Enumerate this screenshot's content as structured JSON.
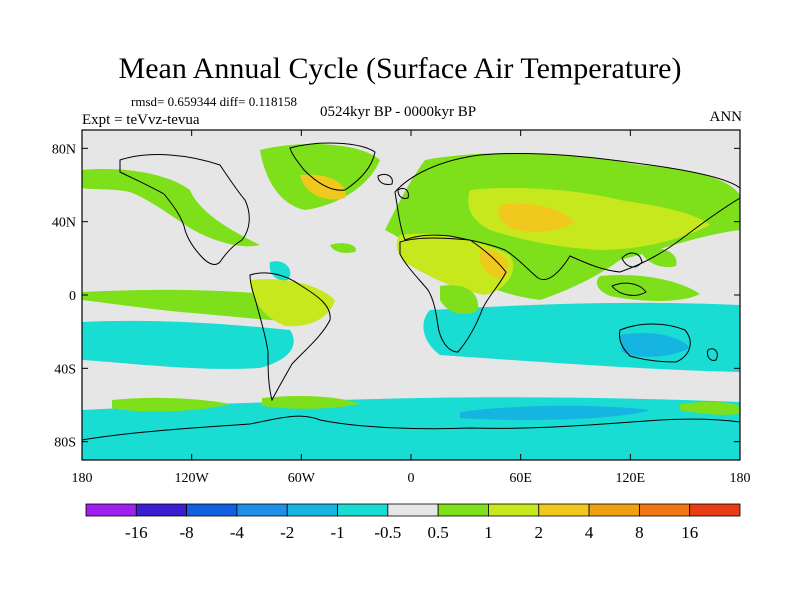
{
  "title": "Mean Annual Cycle (Surface Air Temperature)",
  "stats": "rmsd= 0.659344 diff= 0.118158",
  "experiment": "Expt = teVvz-tevua",
  "period": "0524kyr BP - 0000kyr BP",
  "season": "ANN",
  "axes": {
    "lon_ticks": [
      "180",
      "120W",
      "60W",
      "0",
      "60E",
      "120E",
      "180"
    ],
    "lat_ticks": [
      "80N",
      "40N",
      "0",
      "40S",
      "80S"
    ]
  },
  "colorbar": {
    "labels": [
      "-16",
      "-8",
      "-4",
      "-2",
      "-1",
      "-0.5",
      "0.5",
      "1",
      "2",
      "4",
      "8",
      "16"
    ],
    "colors": [
      "#a020f0",
      "#3a1fd0",
      "#1060e0",
      "#1e90e8",
      "#16b4e0",
      "#19dcd2",
      "#e6e6e6",
      "#7ee01a",
      "#c8e81e",
      "#f0c81e",
      "#f0a010",
      "#f07814",
      "#e83c14"
    ]
  },
  "colors": {
    "background": "#e6e6e6",
    "coastline": "#000000"
  }
}
